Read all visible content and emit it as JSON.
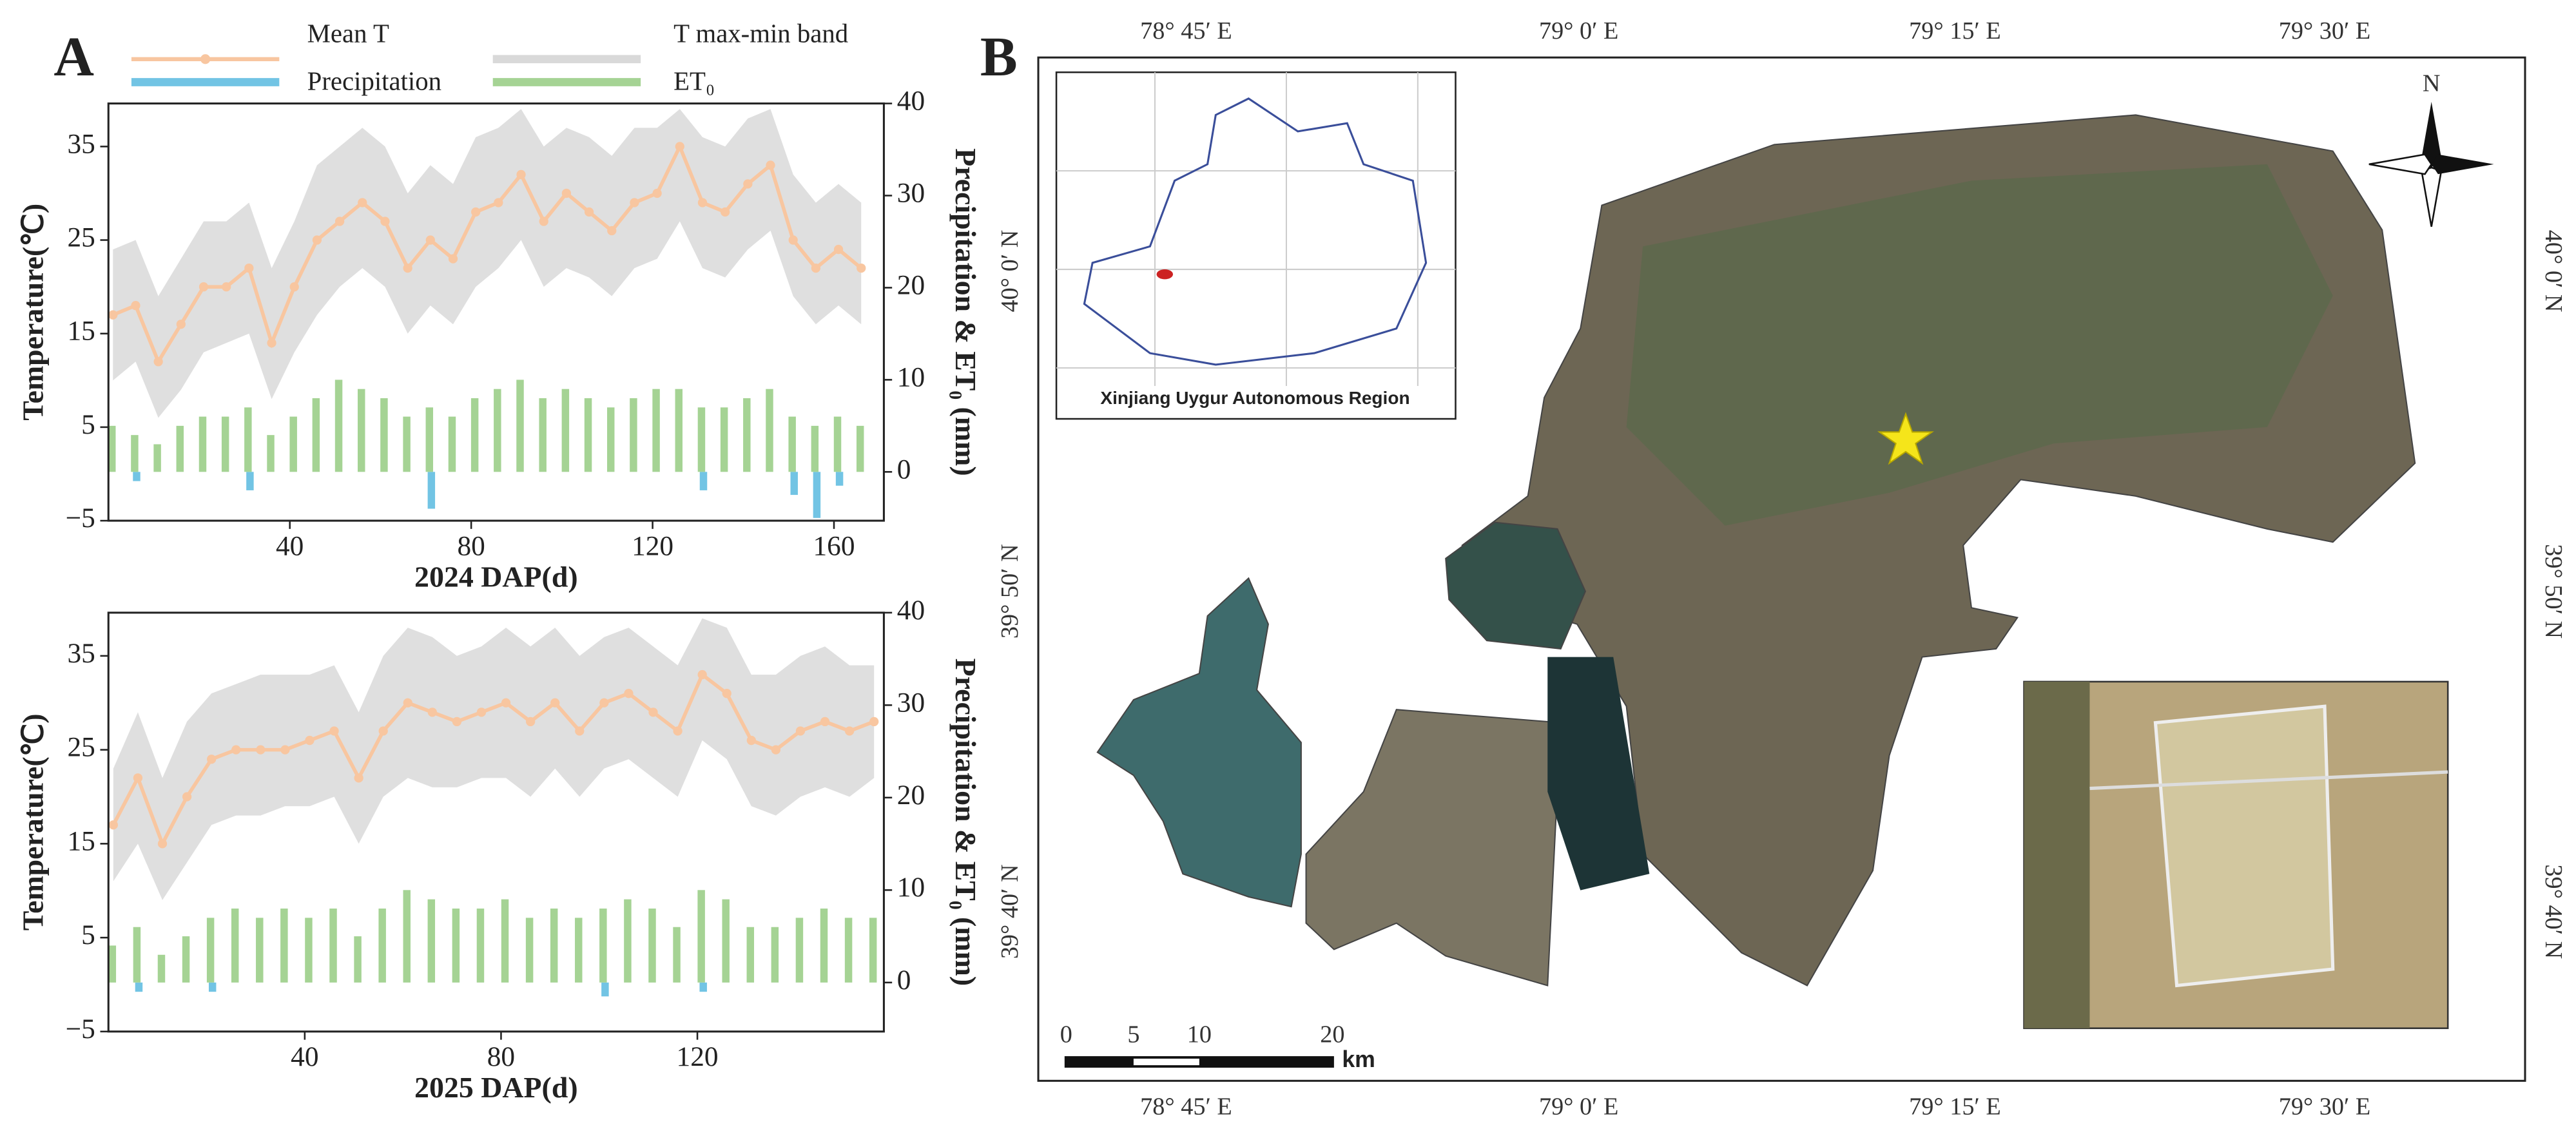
{
  "figure": {
    "panel_a": "A",
    "panel_b": "B"
  },
  "chart_data": [
    {
      "type": "combo",
      "legend": "above",
      "x_label": "2024 DAP(d)",
      "y_label": "Temperature(℃)",
      "y2_label": "Precipitation & ET₀ (mm)",
      "x": [
        1,
        6,
        11,
        16,
        21,
        26,
        31,
        36,
        41,
        46,
        51,
        56,
        61,
        66,
        71,
        76,
        81,
        86,
        91,
        96,
        101,
        106,
        111,
        116,
        121,
        126,
        131,
        136,
        141,
        146,
        151,
        156,
        161,
        166
      ],
      "series": [
        {
          "name": "Mean T",
          "kind": "line",
          "color": "#f8c6a0",
          "values": [
            17,
            18,
            12,
            16,
            20,
            20,
            22,
            14,
            20,
            25,
            27,
            29,
            27,
            22,
            25,
            23,
            28,
            29,
            32,
            27,
            30,
            28,
            26,
            29,
            30,
            35,
            29,
            28,
            31,
            33,
            25,
            22,
            24,
            22
          ]
        },
        {
          "name": "T max-min band",
          "kind": "band",
          "color": "#d9d9d9",
          "values": [
            24,
            25,
            19,
            23,
            27,
            27,
            29,
            22,
            27,
            33,
            35,
            37,
            35,
            30,
            33,
            31,
            36,
            37,
            39,
            35,
            37,
            36,
            34,
            37,
            37,
            39,
            36,
            35,
            38,
            39,
            32,
            29,
            31,
            29
          ],
          "lower": [
            10,
            12,
            6,
            9,
            13,
            14,
            15,
            8,
            13,
            17,
            20,
            22,
            20,
            15,
            18,
            16,
            20,
            22,
            25,
            20,
            22,
            21,
            19,
            22,
            23,
            27,
            22,
            21,
            24,
            26,
            19,
            16,
            18,
            16
          ]
        },
        {
          "name": "Precipitation",
          "kind": "bar",
          "direction": "down",
          "axis": "y2",
          "color": "#72c4e4",
          "values": [
            0,
            1,
            0,
            0,
            0,
            0,
            2,
            0,
            0,
            0,
            0,
            0,
            0,
            0,
            4,
            0,
            0,
            0,
            0,
            0,
            0,
            0,
            0,
            0,
            0,
            0,
            2,
            0,
            0,
            0,
            2.5,
            5,
            1.5,
            0
          ]
        },
        {
          "name": "ET₀",
          "kind": "bar",
          "direction": "up",
          "axis": "y2",
          "color": "#a5d394",
          "values": [
            5,
            4,
            3,
            5,
            6,
            6,
            7,
            4,
            6,
            8,
            10,
            9,
            8,
            6,
            7,
            6,
            8,
            9,
            10,
            8,
            9,
            8,
            7,
            8,
            9,
            9,
            7,
            7,
            8,
            9,
            6,
            5,
            6,
            5
          ]
        }
      ],
      "xlim": [
        0,
        171
      ],
      "xticks": [
        40,
        80,
        120,
        160
      ],
      "ylim": [
        -5,
        39.6
      ],
      "yticks": [
        {
          "value": -5,
          "label": "−5"
        },
        5,
        15,
        25,
        35
      ],
      "y2lim": [
        -5.3,
        40
      ],
      "y2ticks": [
        0,
        10,
        20,
        30,
        40
      ]
    },
    {
      "type": "combo",
      "legend": "none",
      "x_label": "2025 DAP(d)",
      "y_label": "Temperature(℃)",
      "y2_label": "Precipitation & ET₀ (mm)",
      "x": [
        1,
        6,
        11,
        16,
        21,
        26,
        31,
        36,
        41,
        46,
        51,
        56,
        61,
        66,
        71,
        76,
        81,
        86,
        91,
        96,
        101,
        106,
        111,
        116,
        121,
        126,
        131,
        136,
        141,
        146,
        151,
        156
      ],
      "series": [
        {
          "name": "Mean T",
          "kind": "line",
          "color": "#f8c6a0",
          "values": [
            17,
            22,
            15,
            20,
            24,
            25,
            25,
            25,
            26,
            27,
            22,
            27,
            30,
            29,
            28,
            29,
            30,
            28,
            30,
            27,
            30,
            31,
            29,
            27,
            33,
            31,
            26,
            25,
            27,
            28,
            27,
            28
          ]
        },
        {
          "name": "T max-min band",
          "kind": "band",
          "color": "#d9d9d9",
          "values": [
            23,
            29,
            22,
            28,
            31,
            32,
            33,
            33,
            33,
            34,
            29,
            35,
            38,
            37,
            35,
            36,
            38,
            36,
            38,
            35,
            37,
            38,
            36,
            34,
            39,
            38,
            33,
            33,
            35,
            36,
            34,
            34
          ],
          "lower": [
            11,
            15,
            9,
            13,
            17,
            18,
            18,
            19,
            19,
            20,
            15,
            20,
            22,
            21,
            21,
            22,
            22,
            20,
            23,
            20,
            23,
            24,
            22,
            20,
            26,
            24,
            19,
            18,
            20,
            21,
            20,
            22
          ]
        },
        {
          "name": "Precipitation",
          "kind": "bar",
          "direction": "down",
          "axis": "y2",
          "color": "#72c4e4",
          "values": [
            0,
            1,
            0,
            0,
            1,
            0,
            0,
            0,
            0,
            0,
            0,
            0,
            0,
            0,
            0,
            0,
            0,
            0,
            0,
            0,
            1.5,
            0,
            0,
            0,
            1,
            0,
            0,
            0,
            0,
            0,
            0,
            0
          ]
        },
        {
          "name": "ET₀",
          "kind": "bar",
          "direction": "up",
          "axis": "y2",
          "color": "#a5d394",
          "values": [
            4,
            6,
            3,
            5,
            7,
            8,
            7,
            8,
            7,
            8,
            5,
            8,
            10,
            9,
            8,
            8,
            9,
            7,
            8,
            7,
            8,
            9,
            8,
            6,
            10,
            9,
            6,
            6,
            7,
            8,
            7,
            7
          ]
        }
      ],
      "xlim": [
        0,
        158
      ],
      "xticks": [
        40,
        80,
        120
      ],
      "ylim": [
        -5,
        39.6
      ],
      "yticks": [
        {
          "value": -5,
          "label": "−5"
        },
        5,
        15,
        25,
        35
      ],
      "y2lim": [
        -5.3,
        40
      ],
      "y2ticks": [
        0,
        10,
        20,
        30,
        40
      ]
    }
  ],
  "map": {
    "lon_labels": [
      "78° 45′ E",
      "79° 0′ E",
      "79° 15′ E",
      "79° 30′ E"
    ],
    "lat_labels": [
      "40° 0′ N",
      "39° 50′ N",
      "39° 40′ N"
    ],
    "inset_title": "Xinjiang Uygur Autonomous Region",
    "north": "N",
    "scale_labels": [
      "0",
      "5",
      "10",
      "20"
    ],
    "scale_unit": "km"
  }
}
